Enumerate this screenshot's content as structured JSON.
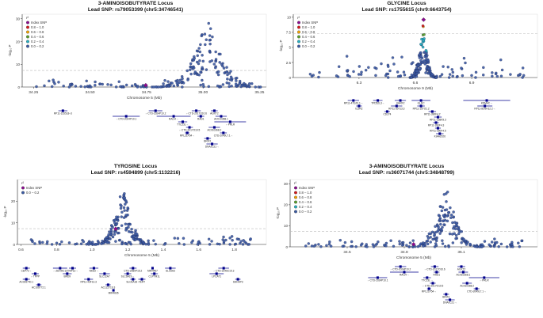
{
  "colors": {
    "index_snp": "#8b0a8f",
    "r2_0.8-1.0": "#d7191c",
    "r2_0.6-0.8": "#f5a300",
    "r2_0.4-0.6": "#5aa02c",
    "r2_0.2-0.4": "#25b0c2",
    "r2_0.0-0.2": "#3b5ba5",
    "threshold": "#bbbbbb",
    "gene": "#00008b"
  },
  "chart_data": [
    {
      "type": "scatter",
      "title_line1": "3-AMINOISOBUTYRATE Locus",
      "title_line2": "Lead SNP: rs79053399 (chr5:34746541)",
      "xlabel": "Chromosome 5 (Mb)",
      "ylabel": "-log₁₀ P",
      "xlim": [
        34.2,
        35.28
      ],
      "ylim": [
        0,
        32
      ],
      "xticks": [
        34.25,
        34.5,
        34.75,
        35.0,
        35.25
      ],
      "xtick_labels": [
        "34.25",
        "34.50",
        "34.75",
        "35.00",
        "35.25"
      ],
      "yticks": [
        0,
        10,
        20,
        30
      ],
      "threshold": 7.3,
      "legend_title": "r²",
      "legend": [
        {
          "label": "Index SNP",
          "color_key": "index_snp"
        },
        {
          "label": "0.8 – 1.0",
          "color_key": "r2_0.8-1.0"
        },
        {
          "label": "0.6 – 0.8",
          "color_key": "r2_0.6-0.8"
        },
        {
          "label": "0.4 – 0.6",
          "color_key": "r2_0.4-0.6"
        },
        {
          "label": "0.2 – 0.4",
          "color_key": "r2_0.2-0.4"
        },
        {
          "label": "0.0 – 0.2",
          "color_key": "r2_0.0-0.2"
        }
      ],
      "index_snp": {
        "x": 34.7465,
        "y": 0.8
      },
      "peak": {
        "center": 35.02,
        "spread": 0.1,
        "height": 30
      },
      "genes": [
        {
          "name": "RP11-1335L8–3",
          "x": 34.38,
          "row": 0,
          "w": 0.04
        },
        {
          "name": "←CTD-2024P10.2",
          "x": 34.79,
          "row": 0,
          "w": 0.06
        },
        {
          "name": "←CTD-2017O10.6",
          "x": 34.97,
          "row": 0,
          "w": 0.04
        },
        {
          "name": "AGXT2",
          "x": 35.05,
          "row": 0,
          "w": 0.03
        },
        {
          "name": "←CTD-2024P10.1",
          "x": 34.66,
          "row": 1,
          "w": 0.12
        },
        {
          "name": "RAI14→",
          "x": 34.87,
          "row": 1,
          "w": 0.15
        },
        {
          "name": "RAD1",
          "x": 34.99,
          "row": 1,
          "w": 0.03
        },
        {
          "name": "AC010368.1",
          "x": 35.08,
          "row": 1,
          "w": 0.05
        },
        {
          "name": "TTC23L→",
          "x": 34.91,
          "row": 2,
          "w": 0.04
        },
        {
          "name": "←PRLR",
          "x": 35.12,
          "row": 2,
          "w": 0.14
        },
        {
          "name": "←CTD-2017O10.5",
          "x": 34.94,
          "row": 3,
          "w": 0.03
        },
        {
          "name": "AC010368.2",
          "x": 35.05,
          "row": 3,
          "w": 0.05
        },
        {
          "name": "RPL21P54→",
          "x": 34.93,
          "row": 4,
          "w": 0.02
        },
        {
          "name": "CTD-2049L7.1→",
          "x": 35.09,
          "row": 4,
          "w": 0.03
        },
        {
          "name": "BRIX1",
          "x": 35.02,
          "row": 5,
          "w": 0.03
        },
        {
          "name": "DNAJC21→",
          "x": 35.04,
          "row": 6,
          "w": 0.05
        }
      ]
    },
    {
      "type": "scatter",
      "title_line1": "GLYCINE Locus",
      "title_line2": "Lead SNP: rs1755615 (chr9:6643754)",
      "xlabel": "Chromosome 9 (Mb)",
      "ylabel": "-log₁₀ P",
      "xlim": [
        5.95,
        7.25
      ],
      "ylim": [
        0,
        10.5
      ],
      "xticks": [
        6.3,
        6.6,
        6.9
      ],
      "xtick_labels": [
        "6.3",
        "6.6",
        "6.9"
      ],
      "yticks": [
        0,
        2.5,
        5,
        7.5,
        10
      ],
      "threshold": 7.3,
      "legend_title": "r²",
      "legend": [
        {
          "label": "Index SNP",
          "color_key": "index_snp"
        },
        {
          "label": "0.8 – 1.0",
          "color_key": "r2_0.8-1.0"
        },
        {
          "label": "0.6 – 0.8",
          "color_key": "r2_0.6-0.8"
        },
        {
          "label": "0.4 – 0.6",
          "color_key": "r2_0.4-0.6"
        },
        {
          "label": "0.2 – 0.4",
          "color_key": "r2_0.2-0.4"
        },
        {
          "label": "0.0 – 0.2",
          "color_key": "r2_0.0-0.2"
        }
      ],
      "index_snp": {
        "x": 6.6437,
        "y": 9.6
      },
      "peak": {
        "center": 6.64,
        "spread": 0.03,
        "height": 9.4
      },
      "genes": [
        {
          "name": "RP11-47G20.1→",
          "x": 6.27,
          "row": 0,
          "w": 0.06
        },
        {
          "name": "TPD52L3→",
          "x": 6.4,
          "row": 0,
          "w": 0.05
        },
        {
          "name": "UHRF2",
          "x": 6.52,
          "row": 0,
          "w": 0.06
        },
        {
          "name": "GLDC",
          "x": 6.63,
          "row": 0,
          "w": 0.1
        },
        {
          "name": "KDM4C→",
          "x": 6.98,
          "row": 0,
          "w": 0.25
        },
        {
          "name": "ILDR2",
          "x": 6.3,
          "row": 1,
          "w": 0.03
        },
        {
          "name": "RP11-30713.3",
          "x": 6.5,
          "row": 1,
          "w": 0.06
        },
        {
          "name": "RP11-157O1.2",
          "x": 6.63,
          "row": 1,
          "w": 0.04
        },
        {
          "name": "RP11-8O9H12.2→",
          "x": 6.97,
          "row": 1,
          "w": 0.08
        },
        {
          "name": "RP11-390F4.2",
          "x": 6.69,
          "row": 2,
          "w": 0.04
        },
        {
          "name": "CD274",
          "x": 6.45,
          "row": 2,
          "w": 0.03
        },
        {
          "name": "RP11-168K9.3",
          "x": 6.72,
          "row": 3,
          "w": 0.04
        },
        {
          "name": "RP11-390F4.3",
          "x": 6.71,
          "row": 4,
          "w": 0.03
        },
        {
          "name": "RP11-390F4.5",
          "x": 6.72,
          "row": 5,
          "w": 0.03
        },
        {
          "name": "KIAA2026",
          "x": 6.73,
          "row": 6,
          "w": 0.04
        }
      ]
    },
    {
      "type": "scatter",
      "title_line1": "TYROSINE Locus",
      "title_line2": "Lead SNP: rs4594899 (chr5:1132216)",
      "xlabel": "Chromosome 5 (Mb)",
      "ylabel": "-log₁₀ P",
      "xlim": [
        0.58,
        1.98
      ],
      "ylim": [
        0,
        30
      ],
      "xticks": [
        0.6,
        0.8,
        1.0,
        1.2,
        1.4,
        1.6,
        1.8
      ],
      "xtick_labels": [
        "0.6",
        "0.8",
        "1.0",
        "1.2",
        "1.4",
        "1.6",
        "1.8"
      ],
      "yticks": [
        0,
        10,
        20
      ],
      "threshold": 7.3,
      "legend_title": "r²",
      "legend": [
        {
          "label": "Index SNP",
          "color_key": "index_snp"
        },
        {
          "label": "0.0 – 0.2",
          "color_key": "r2_0.0-0.2"
        }
      ],
      "index_snp": {
        "x": 1.1322,
        "y": 7.2
      },
      "peak": {
        "center": 1.17,
        "spread": 0.07,
        "height": 28
      },
      "genes": [
        {
          "name": "CEP72→",
          "x": 0.63,
          "row": 0,
          "w": 0.04
        },
        {
          "name": "←ZDHHC11",
          "x": 0.82,
          "row": 0,
          "w": 0.08
        },
        {
          "name": "TRIP13→",
          "x": 0.89,
          "row": 0,
          "w": 0.04
        },
        {
          "name": "NKD2→",
          "x": 1.01,
          "row": 0,
          "w": 0.05
        },
        {
          "name": "CTD-2080P15.2",
          "x": 1.23,
          "row": 0,
          "w": 0.04
        },
        {
          "name": "MIR4457",
          "x": 1.34,
          "row": 0,
          "w": 0.01
        },
        {
          "name": "SLC6A3",
          "x": 1.44,
          "row": 0,
          "w": 0.06
        },
        {
          "name": "←CTD-2246C15.3",
          "x": 1.74,
          "row": 0,
          "w": 0.06
        },
        {
          "name": "←TPPP",
          "x": 0.68,
          "row": 1,
          "w": 0.04
        },
        {
          "name": "BRD9",
          "x": 0.86,
          "row": 1,
          "w": 0.05
        },
        {
          "name": "SLC12A7",
          "x": 1.07,
          "row": 1,
          "w": 0.06
        },
        {
          "name": "SLC6A19→",
          "x": 1.2,
          "row": 1,
          "w": 0.04
        },
        {
          "name": "CLPTM1L",
          "x": 1.35,
          "row": 1,
          "w": 0.04
        },
        {
          "name": "LPCAT1",
          "x": 1.7,
          "row": 1,
          "w": 0.08
        },
        {
          "name": "AC026740.1",
          "x": 0.63,
          "row": 2,
          "w": 0.04
        },
        {
          "name": "RP11-43F13.3",
          "x": 0.98,
          "row": 2,
          "w": 0.05
        },
        {
          "name": "SLC6A18→",
          "x": 1.23,
          "row": 2,
          "w": 0.03
        },
        {
          "name": "TERT",
          "x": 1.28,
          "row": 2,
          "w": 0.04
        },
        {
          "name": "SDHAP3",
          "x": 1.82,
          "row": 2,
          "w": 0.03
        },
        {
          "name": "AC106772.1",
          "x": 0.7,
          "row": 3,
          "w": 0.03
        },
        {
          "name": "AC122719.3",
          "x": 1.09,
          "row": 3,
          "w": 0.03
        },
        {
          "name": "MIR4635",
          "x": 1.12,
          "row": 4,
          "w": 0.01
        }
      ]
    },
    {
      "type": "scatter",
      "title_line1": "3-AMINOISOBUTYRATE Locus",
      "title_line2": "Lead SNP: rs36071744 (chr5:34848799)",
      "xlabel": "Chromosome 5 (Mb)",
      "ylabel": "-log₁₀ P",
      "xlim": [
        34.2,
        35.5
      ],
      "ylim": [
        0,
        32
      ],
      "xticks": [
        34.5,
        34.8,
        35.1
      ],
      "xtick_labels": [
        "34.5",
        "34.8",
        "35.1"
      ],
      "yticks": [
        0,
        10,
        20,
        30
      ],
      "threshold": 7.3,
      "legend_title": "r²",
      "legend": [
        {
          "label": "Index SNP",
          "color_key": "index_snp"
        },
        {
          "label": "0.8 – 1.0",
          "color_key": "r2_0.8-1.0"
        },
        {
          "label": "0.6 – 0.8",
          "color_key": "r2_0.6-0.8"
        },
        {
          "label": "0.4 – 0.6",
          "color_key": "r2_0.4-0.6"
        },
        {
          "label": "0.2 – 0.4",
          "color_key": "r2_0.2-0.4"
        },
        {
          "label": "0.0 – 0.2",
          "color_key": "r2_0.0-0.2"
        }
      ],
      "index_snp": {
        "x": 34.8488,
        "y": 1.2
      },
      "peak": {
        "center": 35.02,
        "spread": 0.08,
        "height": 30
      },
      "genes": [
        {
          "name": "←CTD-2024P10.2",
          "x": 34.78,
          "row": 0,
          "w": 0.06
        },
        {
          "name": "←CTD-2017O10.6",
          "x": 34.96,
          "row": 0,
          "w": 0.04
        },
        {
          "name": "AGXT2",
          "x": 35.1,
          "row": 0,
          "w": 0.04
        },
        {
          "name": "RAI14→",
          "x": 34.8,
          "row": 1,
          "w": 0.15
        },
        {
          "name": "RAD1",
          "x": 34.97,
          "row": 1,
          "w": 0.03
        },
        {
          "name": "AC010368.1",
          "x": 35.11,
          "row": 1,
          "w": 0.05
        },
        {
          "name": "←CTD-2024P10.1",
          "x": 34.66,
          "row": 2,
          "w": 0.1
        },
        {
          "name": "TTC23L→",
          "x": 34.92,
          "row": 2,
          "w": 0.04
        },
        {
          "name": "←PRLR",
          "x": 35.22,
          "row": 2,
          "w": 0.16
        },
        {
          "name": "←CTD-2017O10.5",
          "x": 34.95,
          "row": 3,
          "w": 0.03
        },
        {
          "name": "AC010368.2",
          "x": 35.13,
          "row": 3,
          "w": 0.05
        },
        {
          "name": "RPL21P54→",
          "x": 34.93,
          "row": 4,
          "w": 0.02
        },
        {
          "name": "CTD-2049L7.1→",
          "x": 35.18,
          "row": 4,
          "w": 0.03
        },
        {
          "name": "BRIX1",
          "x": 35.02,
          "row": 5,
          "w": 0.03
        },
        {
          "name": "DNAJC21→",
          "x": 35.04,
          "row": 6,
          "w": 0.05
        }
      ]
    }
  ]
}
